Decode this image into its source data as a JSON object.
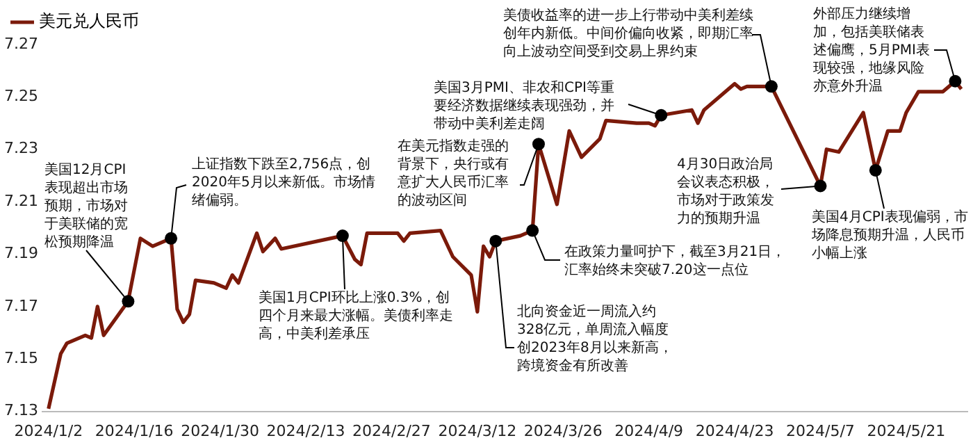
{
  "chart_data": {
    "type": "line",
    "legend": "top",
    "grid": false,
    "marker": "none",
    "x": [
      "2024-01-02",
      "2024-01-04",
      "2024-01-05",
      "2024-01-08",
      "2024-01-09",
      "2024-01-10",
      "2024-01-11",
      "2024-01-15",
      "2024-01-17",
      "2024-01-19",
      "2024-01-22",
      "2024-01-23",
      "2024-01-24",
      "2024-01-25",
      "2024-01-26",
      "2024-01-29",
      "2024-01-31",
      "2024-02-01",
      "2024-02-02",
      "2024-02-05",
      "2024-02-06",
      "2024-02-08",
      "2024-02-09",
      "2024-02-19",
      "2024-02-21",
      "2024-02-22",
      "2024-02-23",
      "2024-02-28",
      "2024-02-29",
      "2024-03-01",
      "2024-03-06",
      "2024-03-08",
      "2024-03-11",
      "2024-03-12",
      "2024-03-13",
      "2024-03-14",
      "2024-03-15",
      "2024-03-19",
      "2024-03-21",
      "2024-03-22",
      "2024-03-25",
      "2024-03-27",
      "2024-03-29",
      "2024-04-01",
      "2024-04-02",
      "2024-04-07",
      "2024-04-09",
      "2024-04-10",
      "2024-04-11",
      "2024-04-16",
      "2024-04-17",
      "2024-04-18",
      "2024-04-22",
      "2024-04-23",
      "2024-04-24",
      "2024-04-25",
      "2024-04-27",
      "2024-04-29",
      "2024-05-07",
      "2024-05-08",
      "2024-05-10",
      "2024-05-14",
      "2024-05-16",
      "2024-05-18",
      "2024-05-20",
      "2024-05-21",
      "2024-05-23",
      "2024-05-27",
      "2024-05-29",
      "2024-05-30"
    ],
    "series": [
      {
        "name": "美元兑人民币",
        "color": "#7b1a0a",
        "values": [
          7.131,
          7.152,
          7.156,
          7.159,
          7.158,
          7.17,
          7.159,
          7.172,
          7.196,
          7.193,
          7.196,
          7.169,
          7.164,
          7.167,
          7.18,
          7.179,
          7.177,
          7.182,
          7.179,
          7.198,
          7.191,
          7.196,
          7.192,
          7.197,
          7.188,
          7.186,
          7.198,
          7.198,
          7.195,
          7.198,
          7.199,
          7.189,
          7.182,
          7.168,
          7.193,
          7.189,
          7.195,
          7.197,
          7.199,
          7.232,
          7.209,
          7.237,
          7.227,
          7.234,
          7.241,
          7.24,
          7.24,
          7.239,
          7.243,
          7.245,
          7.24,
          7.245,
          7.253,
          7.255,
          7.253,
          7.254,
          7.254,
          7.254,
          7.216,
          7.23,
          7.229,
          7.244,
          7.222,
          7.237,
          7.237,
          7.244,
          7.252,
          7.252,
          7.256,
          7.253
        ]
      }
    ],
    "xlim": [
      "2024-01-01",
      "2024-05-31"
    ],
    "xticks": [
      {
        "value": "2024-01-02",
        "label": "2024/1/2"
      },
      {
        "value": "2024-01-16",
        "label": "2024/1/16"
      },
      {
        "value": "2024-01-30",
        "label": "2024/1/30"
      },
      {
        "value": "2024-02-13",
        "label": "2024/2/13"
      },
      {
        "value": "2024-02-27",
        "label": "2024/2/27"
      },
      {
        "value": "2024-03-12",
        "label": "2024/3/12"
      },
      {
        "value": "2024-03-26",
        "label": "2024/3/26"
      },
      {
        "value": "2024-04-09",
        "label": "2024/4/9"
      },
      {
        "value": "2024-04-23",
        "label": "2024/4/23"
      },
      {
        "value": "2024-05-07",
        "label": "2024/5/7"
      },
      {
        "value": "2024-05-21",
        "label": "2024/5/21"
      }
    ],
    "ylim": [
      7.13,
      7.27
    ],
    "yticks": [
      7.13,
      7.15,
      7.17,
      7.19,
      7.21,
      7.23,
      7.25,
      7.27
    ],
    "annotations": [
      {
        "text": "美国12月CPI表现超出市场预期，市场对于美联储的宽松预期降温",
        "x": "2024-01-15",
        "y": 7.172
      },
      {
        "text": "上证指数下跌至2,756点，创2020年5月以来新低。市场情绪偏弱。",
        "x": "2024-01-22",
        "y": 7.196
      },
      {
        "text": "美国1月CPI环比上涨0.3%，创四个月来最大涨幅。美债利率走高，中美利差承压",
        "x": "2024-02-19",
        "y": 7.197
      },
      {
        "text": "北向资金近一周流入约328亿元，单周流入幅度创2023年8月以来新高，跨境资金有所改善",
        "x": "2024-03-15",
        "y": 7.195
      },
      {
        "text": "在美元指数走强的背景下，央行或有意扩大人民币汇率的波动区间",
        "x": "2024-03-22",
        "y": 7.232
      },
      {
        "text": "在政策力量呵护下，截至3月21日，汇率始终未突破7.20这一点位",
        "x": "2024-03-21",
        "y": 7.199
      },
      {
        "text": "美国3月PMI、非农和CPI等重要经济数据继续表现强劲，并带动中美利差走阔",
        "x": "2024-04-11",
        "y": 7.243
      },
      {
        "text": "美债收益率的进一步上行带动中美利差续创年内新低。中间价偏向收紧，即期汇率向上波动空间受到交易上界约束",
        "x": "2024-04-29",
        "y": 7.254
      },
      {
        "text": "4月30日政治局会议表态积极，市场对于政策发力的预期升温",
        "x": "2024-05-07",
        "y": 7.216
      },
      {
        "text": "美国4月CPI表现偏弱，市场降息预期升温，人民币小幅上涨",
        "x": "2024-05-16",
        "y": 7.222
      },
      {
        "text": "外部压力继续增加，包括美联储表述偏鹰，5月PMI表现较强，地缘风险亦意外升温",
        "x": "2024-05-29",
        "y": 7.256
      }
    ]
  }
}
